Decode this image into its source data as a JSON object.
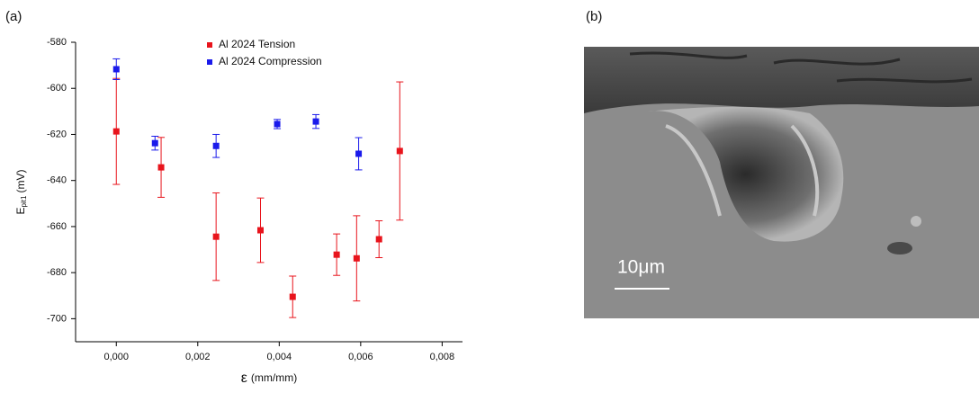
{
  "figure": {
    "panel_a_label": "(a)",
    "panel_b_label": "(b)",
    "scale_bar": "10μm"
  },
  "chart_data": {
    "type": "scatter",
    "ylabel": {
      "main": "E",
      "sub": "pit1",
      "unit": "(mV)"
    },
    "xlabel": {
      "symbol": "ε",
      "unit": "(mm/mm)"
    },
    "xlim": [
      -0.001,
      0.0085
    ],
    "ylim": [
      -710,
      -580
    ],
    "xticks": [
      {
        "value": 0,
        "label": "0,000"
      },
      {
        "value": 0.002,
        "label": "0,002"
      },
      {
        "value": 0.004,
        "label": "0,004"
      },
      {
        "value": 0.006,
        "label": "0,006"
      },
      {
        "value": 0.008,
        "label": "0,008"
      }
    ],
    "yticks": [
      -700,
      -680,
      -660,
      -640,
      -620,
      -600,
      -580
    ],
    "legend": "top",
    "series": [
      {
        "name": "Al 2024 Tension",
        "color": "#e8141c",
        "x": [
          0,
          0.0011,
          0.00245,
          0.00354,
          0.00433,
          0.00541,
          0.0059,
          0.00645,
          0.00696
        ],
        "values": [
          -618.7,
          -634.3,
          -664.4,
          -661.6,
          -690.5,
          -672.2,
          -673.8,
          -665.5,
          -627.2
        ],
        "errors": [
          23,
          13,
          19,
          14,
          9,
          9,
          18.5,
          8,
          30
        ]
      },
      {
        "name": "Al 2024 Compression",
        "color": "#1a1aeb",
        "x": [
          0,
          0.00095,
          0.00245,
          0.00395,
          0.0049,
          0.00595
        ],
        "values": [
          -591.7,
          -623.8,
          -625,
          -615.5,
          -614.4,
          -628.4
        ],
        "errors": [
          4.5,
          3,
          5,
          2,
          3,
          7
        ]
      }
    ]
  }
}
